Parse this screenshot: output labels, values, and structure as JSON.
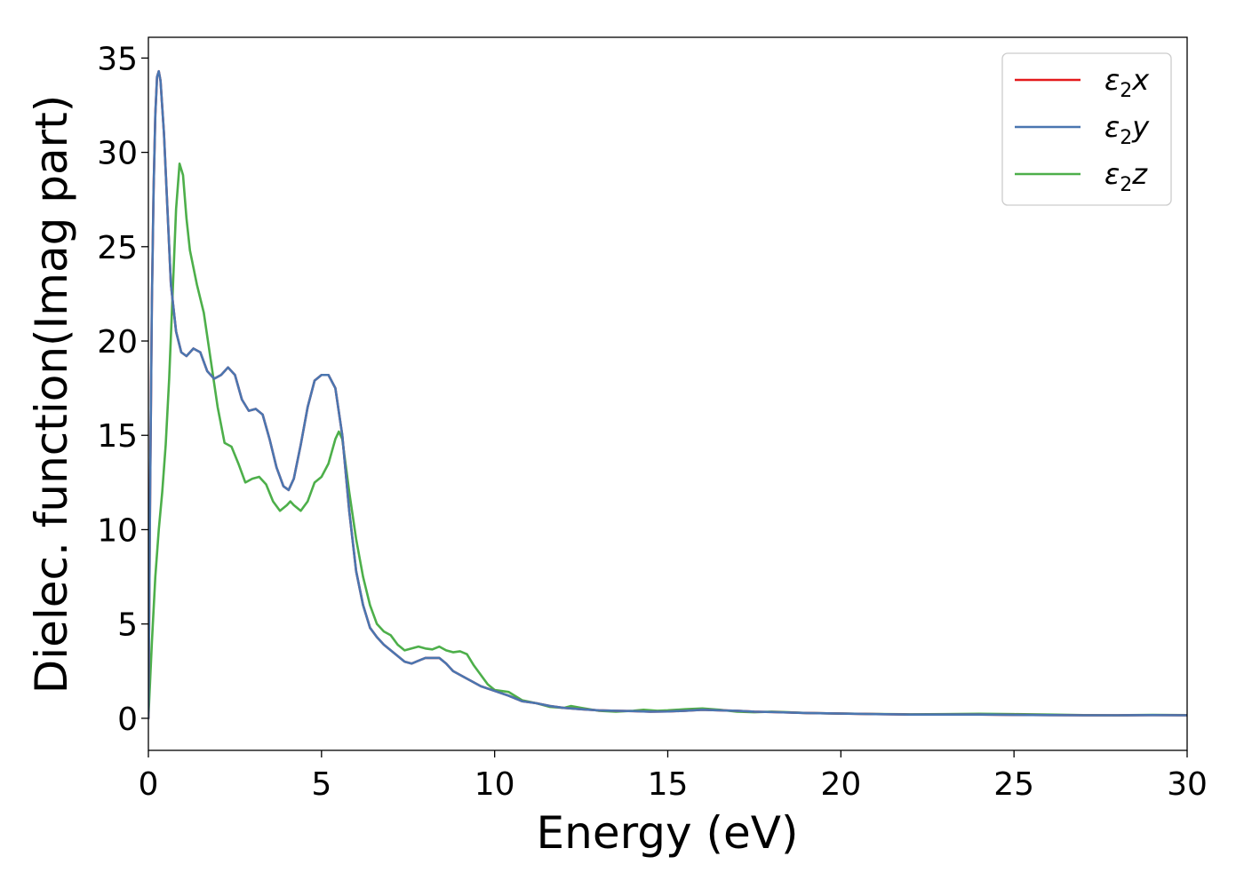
{
  "chart_data": {
    "type": "line",
    "title": "",
    "xlabel": "Energy (eV)",
    "ylabel": "Dielec. function(Imag part)",
    "xlim": [
      0,
      30
    ],
    "ylim": [
      -1.7,
      36.1
    ],
    "xticks": [
      0,
      5,
      10,
      15,
      20,
      25,
      30
    ],
    "yticks": [
      0,
      5,
      10,
      15,
      20,
      25,
      30,
      35
    ],
    "grid": false,
    "legend_position": "top-right",
    "series": [
      {
        "name": "ε₂x",
        "legend_symbol": "ε",
        "legend_sub": "2",
        "legend_var": "x",
        "color": "#e41a1c",
        "points": [
          [
            0,
            0
          ],
          [
            0.05,
            12
          ],
          [
            0.1,
            22
          ],
          [
            0.15,
            28
          ],
          [
            0.2,
            32
          ],
          [
            0.25,
            34
          ],
          [
            0.3,
            34.3
          ],
          [
            0.35,
            33.8
          ],
          [
            0.45,
            31
          ],
          [
            0.55,
            27
          ],
          [
            0.65,
            23
          ],
          [
            0.8,
            20.5
          ],
          [
            0.95,
            19.4
          ],
          [
            1.1,
            19.2
          ],
          [
            1.3,
            19.6
          ],
          [
            1.5,
            19.4
          ],
          [
            1.7,
            18.4
          ],
          [
            1.9,
            18
          ],
          [
            2.1,
            18.2
          ],
          [
            2.3,
            18.6
          ],
          [
            2.5,
            18.2
          ],
          [
            2.7,
            16.9
          ],
          [
            2.9,
            16.3
          ],
          [
            3.1,
            16.4
          ],
          [
            3.3,
            16.1
          ],
          [
            3.5,
            14.8
          ],
          [
            3.7,
            13.3
          ],
          [
            3.9,
            12.3
          ],
          [
            4.05,
            12.1
          ],
          [
            4.2,
            12.7
          ],
          [
            4.4,
            14.5
          ],
          [
            4.6,
            16.5
          ],
          [
            4.8,
            17.9
          ],
          [
            5.0,
            18.2
          ],
          [
            5.2,
            18.2
          ],
          [
            5.4,
            17.5
          ],
          [
            5.6,
            15
          ],
          [
            5.8,
            11
          ],
          [
            6.0,
            7.8
          ],
          [
            6.2,
            6
          ],
          [
            6.4,
            4.8
          ],
          [
            6.6,
            4.3
          ],
          [
            6.8,
            3.9
          ],
          [
            7.0,
            3.6
          ],
          [
            7.2,
            3.3
          ],
          [
            7.4,
            3
          ],
          [
            7.6,
            2.9
          ],
          [
            7.8,
            3.05
          ],
          [
            8.0,
            3.2
          ],
          [
            8.2,
            3.2
          ],
          [
            8.4,
            3.2
          ],
          [
            8.6,
            2.9
          ],
          [
            8.8,
            2.5
          ],
          [
            9.0,
            2.3
          ],
          [
            9.3,
            2.0
          ],
          [
            9.6,
            1.7
          ],
          [
            10.0,
            1.45
          ],
          [
            10.4,
            1.2
          ],
          [
            10.8,
            0.9
          ],
          [
            11.2,
            0.8
          ],
          [
            11.6,
            0.65
          ],
          [
            12.0,
            0.55
          ],
          [
            12.5,
            0.48
          ],
          [
            13.0,
            0.42
          ],
          [
            13.5,
            0.4
          ],
          [
            14.0,
            0.38
          ],
          [
            14.5,
            0.35
          ],
          [
            15.0,
            0.36
          ],
          [
            15.5,
            0.4
          ],
          [
            16.0,
            0.45
          ],
          [
            16.5,
            0.42
          ],
          [
            17.0,
            0.4
          ],
          [
            17.5,
            0.35
          ],
          [
            18.0,
            0.33
          ],
          [
            19.0,
            0.28
          ],
          [
            20.0,
            0.25
          ],
          [
            21.0,
            0.22
          ],
          [
            22.0,
            0.2
          ],
          [
            23.0,
            0.2
          ],
          [
            24.0,
            0.2
          ],
          [
            25.0,
            0.18
          ],
          [
            26.0,
            0.17
          ],
          [
            27.0,
            0.16
          ],
          [
            28.0,
            0.16
          ],
          [
            29.0,
            0.17
          ],
          [
            30.0,
            0.16
          ]
        ]
      },
      {
        "name": "ε₂y",
        "legend_symbol": "ε",
        "legend_sub": "2",
        "legend_var": "y",
        "color": "#4a76b0",
        "points": [
          [
            0,
            0
          ],
          [
            0.05,
            12
          ],
          [
            0.1,
            22
          ],
          [
            0.15,
            28
          ],
          [
            0.2,
            32
          ],
          [
            0.25,
            34
          ],
          [
            0.3,
            34.3
          ],
          [
            0.35,
            33.8
          ],
          [
            0.45,
            31
          ],
          [
            0.55,
            27
          ],
          [
            0.65,
            23
          ],
          [
            0.8,
            20.5
          ],
          [
            0.95,
            19.4
          ],
          [
            1.1,
            19.2
          ],
          [
            1.3,
            19.6
          ],
          [
            1.5,
            19.4
          ],
          [
            1.7,
            18.4
          ],
          [
            1.9,
            18
          ],
          [
            2.1,
            18.2
          ],
          [
            2.3,
            18.6
          ],
          [
            2.5,
            18.2
          ],
          [
            2.7,
            16.9
          ],
          [
            2.9,
            16.3
          ],
          [
            3.1,
            16.4
          ],
          [
            3.3,
            16.1
          ],
          [
            3.5,
            14.8
          ],
          [
            3.7,
            13.3
          ],
          [
            3.9,
            12.3
          ],
          [
            4.05,
            12.1
          ],
          [
            4.2,
            12.7
          ],
          [
            4.4,
            14.5
          ],
          [
            4.6,
            16.5
          ],
          [
            4.8,
            17.9
          ],
          [
            5.0,
            18.2
          ],
          [
            5.2,
            18.2
          ],
          [
            5.4,
            17.5
          ],
          [
            5.6,
            15
          ],
          [
            5.8,
            11
          ],
          [
            6.0,
            7.8
          ],
          [
            6.2,
            6
          ],
          [
            6.4,
            4.8
          ],
          [
            6.6,
            4.3
          ],
          [
            6.8,
            3.9
          ],
          [
            7.0,
            3.6
          ],
          [
            7.2,
            3.3
          ],
          [
            7.4,
            3
          ],
          [
            7.6,
            2.9
          ],
          [
            7.8,
            3.05
          ],
          [
            8.0,
            3.2
          ],
          [
            8.2,
            3.2
          ],
          [
            8.4,
            3.2
          ],
          [
            8.6,
            2.9
          ],
          [
            8.8,
            2.5
          ],
          [
            9.0,
            2.3
          ],
          [
            9.3,
            2.0
          ],
          [
            9.6,
            1.7
          ],
          [
            10.0,
            1.45
          ],
          [
            10.4,
            1.2
          ],
          [
            10.8,
            0.9
          ],
          [
            11.2,
            0.8
          ],
          [
            11.6,
            0.65
          ],
          [
            12.0,
            0.55
          ],
          [
            12.5,
            0.48
          ],
          [
            13.0,
            0.42
          ],
          [
            13.5,
            0.4
          ],
          [
            14.0,
            0.38
          ],
          [
            14.5,
            0.35
          ],
          [
            15.0,
            0.36
          ],
          [
            15.5,
            0.4
          ],
          [
            16.0,
            0.45
          ],
          [
            16.5,
            0.42
          ],
          [
            17.0,
            0.4
          ],
          [
            17.5,
            0.35
          ],
          [
            18.0,
            0.33
          ],
          [
            19.0,
            0.28
          ],
          [
            20.0,
            0.25
          ],
          [
            21.0,
            0.22
          ],
          [
            22.0,
            0.2
          ],
          [
            23.0,
            0.2
          ],
          [
            24.0,
            0.2
          ],
          [
            25.0,
            0.18
          ],
          [
            26.0,
            0.17
          ],
          [
            27.0,
            0.16
          ],
          [
            28.0,
            0.16
          ],
          [
            29.0,
            0.17
          ],
          [
            30.0,
            0.16
          ]
        ]
      },
      {
        "name": "ε₂z",
        "legend_symbol": "ε",
        "legend_sub": "2",
        "legend_var": "z",
        "color": "#4daf4a",
        "points": [
          [
            0,
            0
          ],
          [
            0.1,
            4
          ],
          [
            0.2,
            7.5
          ],
          [
            0.3,
            10
          ],
          [
            0.4,
            12
          ],
          [
            0.5,
            14.5
          ],
          [
            0.6,
            18
          ],
          [
            0.7,
            22.5
          ],
          [
            0.8,
            27
          ],
          [
            0.9,
            29.4
          ],
          [
            1.0,
            28.8
          ],
          [
            1.1,
            26.5
          ],
          [
            1.2,
            24.8
          ],
          [
            1.4,
            23
          ],
          [
            1.6,
            21.5
          ],
          [
            1.8,
            19
          ],
          [
            2.0,
            16.5
          ],
          [
            2.2,
            14.6
          ],
          [
            2.4,
            14.4
          ],
          [
            2.6,
            13.5
          ],
          [
            2.8,
            12.5
          ],
          [
            3.0,
            12.7
          ],
          [
            3.2,
            12.8
          ],
          [
            3.4,
            12.4
          ],
          [
            3.6,
            11.5
          ],
          [
            3.8,
            11
          ],
          [
            4.0,
            11.3
          ],
          [
            4.1,
            11.5
          ],
          [
            4.2,
            11.3
          ],
          [
            4.4,
            11
          ],
          [
            4.6,
            11.5
          ],
          [
            4.8,
            12.5
          ],
          [
            5.0,
            12.8
          ],
          [
            5.2,
            13.5
          ],
          [
            5.4,
            14.8
          ],
          [
            5.5,
            15.2
          ],
          [
            5.6,
            14.8
          ],
          [
            5.8,
            12
          ],
          [
            6.0,
            9.5
          ],
          [
            6.2,
            7.5
          ],
          [
            6.4,
            6
          ],
          [
            6.6,
            5
          ],
          [
            6.8,
            4.6
          ],
          [
            7.0,
            4.4
          ],
          [
            7.2,
            3.9
          ],
          [
            7.4,
            3.6
          ],
          [
            7.6,
            3.7
          ],
          [
            7.8,
            3.8
          ],
          [
            8.0,
            3.7
          ],
          [
            8.2,
            3.65
          ],
          [
            8.4,
            3.8
          ],
          [
            8.6,
            3.6
          ],
          [
            8.8,
            3.5
          ],
          [
            9.0,
            3.55
          ],
          [
            9.2,
            3.4
          ],
          [
            9.4,
            2.8
          ],
          [
            9.6,
            2.3
          ],
          [
            9.8,
            1.8
          ],
          [
            10.0,
            1.5
          ],
          [
            10.4,
            1.4
          ],
          [
            10.8,
            0.95
          ],
          [
            11.2,
            0.8
          ],
          [
            11.6,
            0.6
          ],
          [
            12.0,
            0.55
          ],
          [
            12.2,
            0.65
          ],
          [
            12.5,
            0.55
          ],
          [
            13.0,
            0.4
          ],
          [
            13.5,
            0.35
          ],
          [
            14.0,
            0.4
          ],
          [
            14.3,
            0.45
          ],
          [
            14.7,
            0.4
          ],
          [
            15.0,
            0.42
          ],
          [
            15.5,
            0.48
          ],
          [
            16.0,
            0.52
          ],
          [
            16.5,
            0.45
          ],
          [
            17.0,
            0.35
          ],
          [
            17.5,
            0.32
          ],
          [
            18.0,
            0.35
          ],
          [
            18.5,
            0.32
          ],
          [
            19.0,
            0.28
          ],
          [
            20.0,
            0.25
          ],
          [
            21.0,
            0.23
          ],
          [
            22.0,
            0.21
          ],
          [
            23.0,
            0.22
          ],
          [
            24.0,
            0.24
          ],
          [
            25.0,
            0.22
          ],
          [
            26.0,
            0.2
          ],
          [
            27.0,
            0.17
          ],
          [
            28.0,
            0.16
          ],
          [
            29.0,
            0.18
          ],
          [
            30.0,
            0.17
          ]
        ]
      }
    ]
  }
}
